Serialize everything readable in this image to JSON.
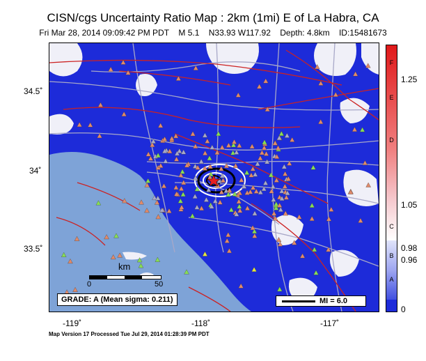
{
  "header": {
    "title": "CISN/cgs Uncertainty Ratio Map : 2km (1mi) E of La Habra, CA",
    "event_time": "Fri Mar 28, 2014 09:09:42 PM PDT",
    "magnitude": "M 5.1",
    "location": "N33.93 W117.92",
    "depth": "Depth: 4.8km",
    "event_id": "ID:15481673"
  },
  "axes": {
    "y_ticks": [
      "34.5˚",
      "34˚",
      "33.5˚"
    ],
    "x_ticks": [
      "-119˚",
      "-118˚",
      "-117˚"
    ]
  },
  "legend": {
    "scale_unit": "km",
    "scale_ticks": [
      "0",
      "50"
    ],
    "grade": "GRADE: A (Mean sigma: 0.211)",
    "mi_label": "MI = 6.0"
  },
  "colorbar": {
    "letters": [
      "F",
      "E",
      "D",
      "C",
      "B",
      "A"
    ],
    "values": [
      "1.25",
      "1.05",
      "0.98",
      "0.96",
      "0"
    ],
    "colors": {
      "high": "#e0191a",
      "mid_red": "#f08080",
      "pink": "#f5c7cc",
      "white": "#ffffff",
      "light_blue": "#9ea6f0",
      "blue": "#4150e0",
      "deep_blue": "#1d2bd9"
    }
  },
  "map": {
    "colors": {
      "land": "#1d2bd9",
      "ocean": "#7ea3d7",
      "fault": "#cc2222",
      "road": "#a8a8c8",
      "station": "#e08a6a",
      "station_alt": "#88dd55",
      "station_yellow": "#e6e640",
      "epicenter": "#e52020"
    }
  },
  "footer": {
    "text": "Map Version 17 Processed Tue Jul 29, 2014 01:28:39 PM PDT"
  }
}
